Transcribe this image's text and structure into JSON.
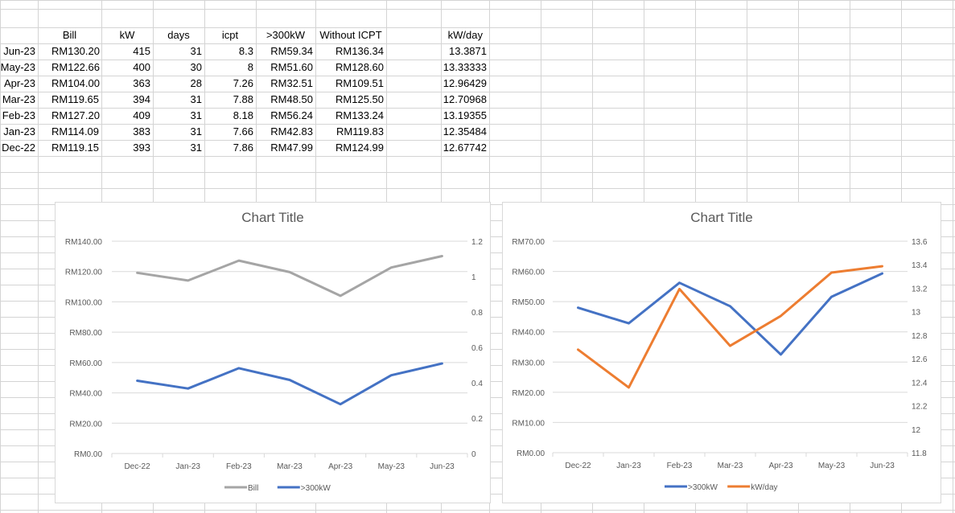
{
  "sheet": {
    "headers": [
      "",
      "Bill",
      "kW",
      "days",
      "icpt",
      ">300kW",
      "Without ICPT",
      "",
      "kW/day"
    ],
    "rows": [
      [
        "Jun-23",
        "RM130.20",
        "415",
        "31",
        "8.3",
        "RM59.34",
        "RM136.34",
        "",
        "13.3871"
      ],
      [
        "May-23",
        "RM122.66",
        "400",
        "30",
        "8",
        "RM51.60",
        "RM128.60",
        "",
        "13.33333"
      ],
      [
        "Apr-23",
        "RM104.00",
        "363",
        "28",
        "7.26",
        "RM32.51",
        "RM109.51",
        "",
        "12.96429"
      ],
      [
        "Mar-23",
        "RM119.65",
        "394",
        "31",
        "7.88",
        "RM48.50",
        "RM125.50",
        "",
        "12.70968"
      ],
      [
        "Feb-23",
        "RM127.20",
        "409",
        "31",
        "8.18",
        "RM56.24",
        "RM133.24",
        "",
        "13.19355"
      ],
      [
        "Jan-23",
        "RM114.09",
        "383",
        "31",
        "7.66",
        "RM42.83",
        "RM119.83",
        "",
        "12.35484"
      ],
      [
        "Dec-22",
        "RM119.15",
        "393",
        "31",
        "7.86",
        "RM47.99",
        "RM124.99",
        "",
        "12.67742"
      ]
    ]
  },
  "colors": {
    "bill": "#a5a5a5",
    "over300": "#4472c4",
    "kwday": "#ed7d31",
    "gridline": "#d9d9d9",
    "axis_text": "#595959",
    "sheet_grid": "#d4d4d4"
  },
  "chart_data": [
    {
      "type": "line",
      "title": "Chart Title",
      "categories": [
        "Dec-22",
        "Jan-23",
        "Feb-23",
        "Mar-23",
        "Apr-23",
        "May-23",
        "Jun-23"
      ],
      "series": [
        {
          "name": "Bill",
          "color": "#a5a5a5",
          "axis": "primary",
          "values": [
            119.15,
            114.09,
            127.2,
            119.65,
            104.0,
            122.66,
            130.2
          ]
        },
        {
          "name": ">300kW",
          "color": "#4472c4",
          "axis": "primary",
          "values": [
            47.99,
            42.83,
            56.24,
            48.5,
            32.51,
            51.6,
            59.34
          ]
        }
      ],
      "y_primary": {
        "min": 0,
        "max": 140,
        "step": 20,
        "ticks": [
          "RM0.00",
          "RM20.00",
          "RM40.00",
          "RM60.00",
          "RM80.00",
          "RM100.00",
          "RM120.00",
          "RM140.00"
        ]
      },
      "y_secondary": {
        "min": 0,
        "max": 1.2,
        "step": 0.2,
        "ticks": [
          "0",
          "0.2",
          "0.4",
          "0.6",
          "0.8",
          "1",
          "1.2"
        ]
      },
      "grid": true,
      "legend": "bottom"
    },
    {
      "type": "line",
      "title": "Chart Title",
      "categories": [
        "Dec-22",
        "Jan-23",
        "Feb-23",
        "Mar-23",
        "Apr-23",
        "May-23",
        "Jun-23"
      ],
      "series": [
        {
          "name": ">300kW",
          "color": "#4472c4",
          "axis": "primary",
          "values": [
            47.99,
            42.83,
            56.24,
            48.5,
            32.51,
            51.6,
            59.34
          ]
        },
        {
          "name": "kW/day",
          "color": "#ed7d31",
          "axis": "secondary",
          "values": [
            12.67742,
            12.35484,
            13.19355,
            12.70968,
            12.96429,
            13.33333,
            13.3871
          ]
        }
      ],
      "y_primary": {
        "min": 0,
        "max": 70,
        "step": 10,
        "ticks": [
          "RM0.00",
          "RM10.00",
          "RM20.00",
          "RM30.00",
          "RM40.00",
          "RM50.00",
          "RM60.00",
          "RM70.00"
        ]
      },
      "y_secondary": {
        "min": 11.8,
        "max": 13.6,
        "step": 0.2,
        "ticks": [
          "11.8",
          "12",
          "12.2",
          "12.4",
          "12.6",
          "12.8",
          "13",
          "13.2",
          "13.4",
          "13.6"
        ]
      },
      "grid": true,
      "legend": "bottom"
    }
  ]
}
